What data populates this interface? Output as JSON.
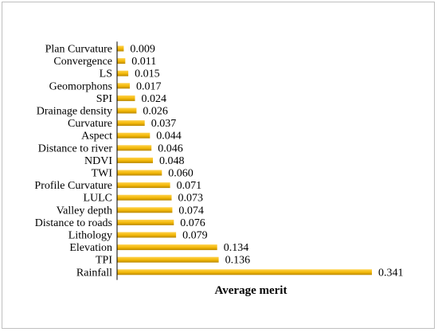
{
  "chart_data": {
    "type": "bar",
    "orientation": "horizontal",
    "categories": [
      "Plan Curvature",
      "Convergence",
      "LS",
      "Geomorphons",
      "SPI",
      "Drainage  density",
      "Curvature",
      "Aspect",
      "Distance to river",
      "NDVI",
      "TWI",
      "Profile Curvature",
      "LULC",
      "Valley depth",
      "Distance to roads",
      "Lithology",
      "Elevation",
      "TPI",
      "Rainfall"
    ],
    "values": [
      0.009,
      0.011,
      0.015,
      0.017,
      0.024,
      0.026,
      0.037,
      0.044,
      0.046,
      0.048,
      0.06,
      0.071,
      0.073,
      0.074,
      0.076,
      0.079,
      0.134,
      0.136,
      0.341
    ],
    "value_labels": [
      "0.009",
      "0.011",
      "0.015",
      "0.017",
      "0.024",
      "0.026",
      "0.037",
      "0.044",
      "0.046",
      "0.048",
      "0.060",
      "0.071",
      "0.073",
      "0.074",
      "0.076",
      "0.079",
      "0.134",
      "0.136",
      "0.341"
    ],
    "title": "",
    "xlabel": "Average merit",
    "ylabel": "",
    "xlim": [
      0,
      0.341
    ],
    "grid": false,
    "legend": "none",
    "bar_color": "#f2b705",
    "bar_color_dark": "#b88600",
    "axis_color": "#000000"
  }
}
